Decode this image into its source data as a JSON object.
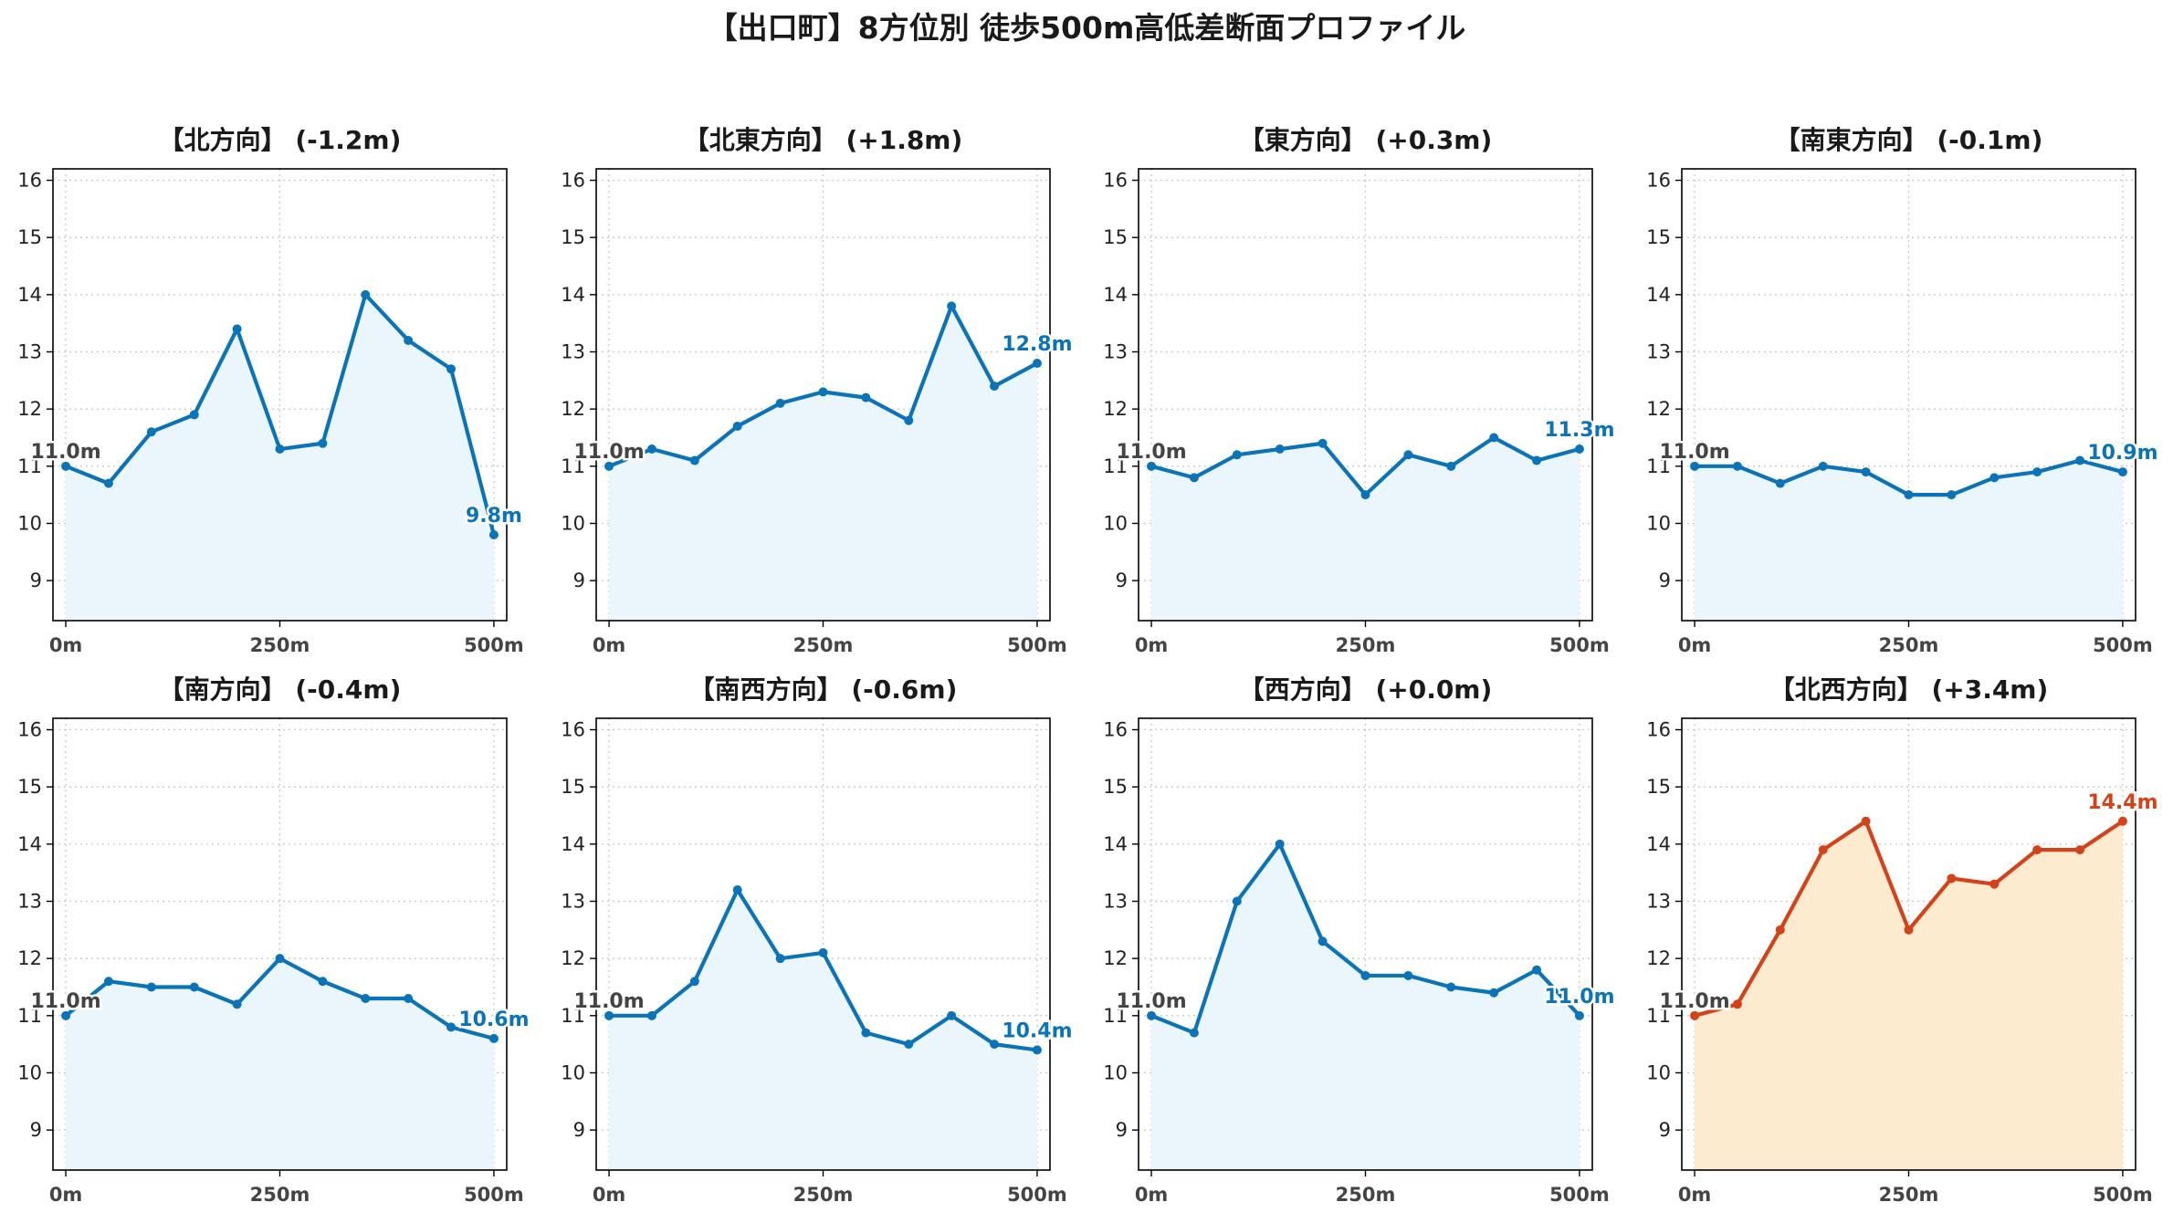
{
  "suptitle": "【出口町】8方位別 徒歩500m高低差断面プロファイル",
  "chart_data": [
    {
      "type": "area",
      "title": "【北方向】 (-1.2m)",
      "x": [
        0,
        50,
        100,
        150,
        200,
        250,
        300,
        350,
        400,
        450,
        500
      ],
      "y": [
        11.0,
        10.7,
        11.6,
        11.9,
        13.4,
        11.3,
        11.4,
        14.0,
        13.2,
        12.7,
        9.8
      ],
      "start_label": "11.0m",
      "end_label": "9.8m",
      "color": "#0b74b8",
      "fill": "#eaf6fb",
      "xticks": [
        "0m",
        "250m",
        "500m"
      ],
      "yticks": [
        9,
        10,
        11,
        12,
        13,
        14,
        15,
        16
      ],
      "ylim": [
        8.3,
        16.2
      ],
      "xlim": [
        -15,
        515
      ],
      "grid": true
    },
    {
      "type": "area",
      "title": "【北東方向】 (+1.8m)",
      "x": [
        0,
        50,
        100,
        150,
        200,
        250,
        300,
        350,
        400,
        450,
        500
      ],
      "y": [
        11.0,
        11.3,
        11.1,
        11.7,
        12.1,
        12.3,
        12.2,
        11.8,
        13.8,
        12.4,
        12.8
      ],
      "start_label": "11.0m",
      "end_label": "12.8m",
      "color": "#0b74b8",
      "fill": "#eaf6fb",
      "xticks": [
        "0m",
        "250m",
        "500m"
      ],
      "yticks": [
        9,
        10,
        11,
        12,
        13,
        14,
        15,
        16
      ],
      "ylim": [
        8.3,
        16.2
      ],
      "xlim": [
        -15,
        515
      ],
      "grid": true
    },
    {
      "type": "area",
      "title": "【東方向】 (+0.3m)",
      "x": [
        0,
        50,
        100,
        150,
        200,
        250,
        300,
        350,
        400,
        450,
        500
      ],
      "y": [
        11.0,
        10.8,
        11.2,
        11.3,
        11.4,
        10.5,
        11.2,
        11.0,
        11.5,
        11.1,
        11.3
      ],
      "start_label": "11.0m",
      "end_label": "11.3m",
      "color": "#0b74b8",
      "fill": "#eaf6fb",
      "xticks": [
        "0m",
        "250m",
        "500m"
      ],
      "yticks": [
        9,
        10,
        11,
        12,
        13,
        14,
        15,
        16
      ],
      "ylim": [
        8.3,
        16.2
      ],
      "xlim": [
        -15,
        515
      ],
      "grid": true
    },
    {
      "type": "area",
      "title": "【南東方向】 (-0.1m)",
      "x": [
        0,
        50,
        100,
        150,
        200,
        250,
        300,
        350,
        400,
        450,
        500
      ],
      "y": [
        11.0,
        11.0,
        10.7,
        11.0,
        10.9,
        10.5,
        10.5,
        10.8,
        10.9,
        11.1,
        10.9
      ],
      "start_label": "11.0m",
      "end_label": "10.9m",
      "color": "#0b74b8",
      "fill": "#eaf6fb",
      "xticks": [
        "0m",
        "250m",
        "500m"
      ],
      "yticks": [
        9,
        10,
        11,
        12,
        13,
        14,
        15,
        16
      ],
      "ylim": [
        8.3,
        16.2
      ],
      "xlim": [
        -15,
        515
      ],
      "grid": true
    },
    {
      "type": "area",
      "title": "【南方向】 (-0.4m)",
      "x": [
        0,
        50,
        100,
        150,
        200,
        250,
        300,
        350,
        400,
        450,
        500
      ],
      "y": [
        11.0,
        11.6,
        11.5,
        11.5,
        11.2,
        12.0,
        11.6,
        11.3,
        11.3,
        10.8,
        10.6
      ],
      "start_label": "11.0m",
      "end_label": "10.6m",
      "color": "#0b74b8",
      "fill": "#eaf6fb",
      "xticks": [
        "0m",
        "250m",
        "500m"
      ],
      "yticks": [
        9,
        10,
        11,
        12,
        13,
        14,
        15,
        16
      ],
      "ylim": [
        8.3,
        16.2
      ],
      "xlim": [
        -15,
        515
      ],
      "grid": true
    },
    {
      "type": "area",
      "title": "【南西方向】 (-0.6m)",
      "x": [
        0,
        50,
        100,
        150,
        200,
        250,
        300,
        350,
        400,
        450,
        500
      ],
      "y": [
        11.0,
        11.0,
        11.6,
        13.2,
        12.0,
        12.1,
        10.7,
        10.5,
        11.0,
        10.5,
        10.4
      ],
      "start_label": "11.0m",
      "end_label": "10.4m",
      "color": "#0b74b8",
      "fill": "#eaf6fb",
      "xticks": [
        "0m",
        "250m",
        "500m"
      ],
      "yticks": [
        9,
        10,
        11,
        12,
        13,
        14,
        15,
        16
      ],
      "ylim": [
        8.3,
        16.2
      ],
      "xlim": [
        -15,
        515
      ],
      "grid": true
    },
    {
      "type": "area",
      "title": "【西方向】 (+0.0m)",
      "x": [
        0,
        50,
        100,
        150,
        200,
        250,
        300,
        350,
        400,
        450,
        500
      ],
      "y": [
        11.0,
        10.7,
        13.0,
        14.0,
        12.3,
        11.7,
        11.7,
        11.5,
        11.4,
        11.8,
        11.0
      ],
      "start_label": "11.0m",
      "end_label": "11.0m",
      "color": "#0b74b8",
      "fill": "#eaf6fb",
      "xticks": [
        "0m",
        "250m",
        "500m"
      ],
      "yticks": [
        9,
        10,
        11,
        12,
        13,
        14,
        15,
        16
      ],
      "ylim": [
        8.3,
        16.2
      ],
      "xlim": [
        -15,
        515
      ],
      "grid": true
    },
    {
      "type": "area",
      "title": "【北西方向】 (+3.4m)",
      "x": [
        0,
        50,
        100,
        150,
        200,
        250,
        300,
        350,
        400,
        450,
        500
      ],
      "y": [
        11.0,
        11.2,
        12.5,
        13.9,
        14.4,
        12.5,
        13.4,
        13.3,
        13.9,
        13.9,
        14.4
      ],
      "start_label": "11.0m",
      "end_label": "14.4m",
      "color": "#d4421a",
      "fill": "#fdebd0",
      "xticks": [
        "0m",
        "250m",
        "500m"
      ],
      "yticks": [
        9,
        10,
        11,
        12,
        13,
        14,
        15,
        16
      ],
      "ylim": [
        8.3,
        16.2
      ],
      "xlim": [
        -15,
        515
      ],
      "grid": true
    }
  ]
}
